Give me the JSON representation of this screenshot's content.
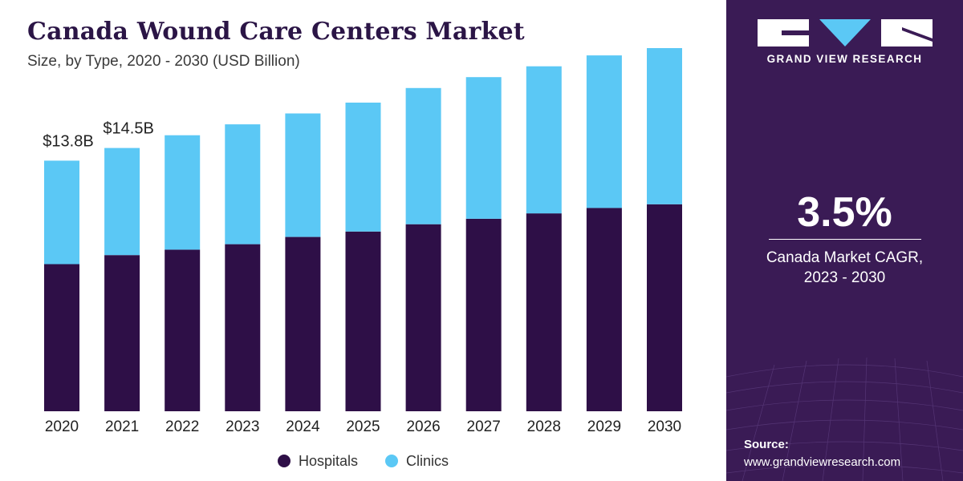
{
  "header": {
    "title": "Canada Wound Care Centers Market",
    "subtitle": "Size, by Type, 2020 - 2030 (USD Billion)"
  },
  "chart_data": {
    "type": "bar",
    "stacked": true,
    "categories": [
      "2020",
      "2021",
      "2022",
      "2023",
      "2024",
      "2025",
      "2026",
      "2027",
      "2028",
      "2029",
      "2030"
    ],
    "series": [
      {
        "name": "Hospitals",
        "color": "#2e0f47",
        "values": [
          8.1,
          8.6,
          8.9,
          9.2,
          9.6,
          9.9,
          10.3,
          10.6,
          10.9,
          11.2,
          11.4
        ]
      },
      {
        "name": "Clinics",
        "color": "#5bc8f5",
        "values": [
          5.7,
          5.9,
          6.3,
          6.6,
          6.8,
          7.1,
          7.5,
          7.8,
          8.1,
          8.4,
          8.6
        ]
      }
    ],
    "annotations": [
      {
        "category": "2020",
        "label": "$13.8B"
      },
      {
        "category": "2021",
        "label": "$14.5B"
      }
    ],
    "ylim": [
      0,
      20
    ],
    "grid": false,
    "legend_position": "bottom-center"
  },
  "side_panel": {
    "brand": "GRAND VIEW RESEARCH",
    "logo_icon": "gvr-logo-icon",
    "cagr_value": "3.5%",
    "cagr_label": "Canada Market CAGR,",
    "cagr_period": "2023 - 2030",
    "source_title": "Source:",
    "source_url": "www.grandviewresearch.com",
    "background_color": "#3a1b55"
  }
}
